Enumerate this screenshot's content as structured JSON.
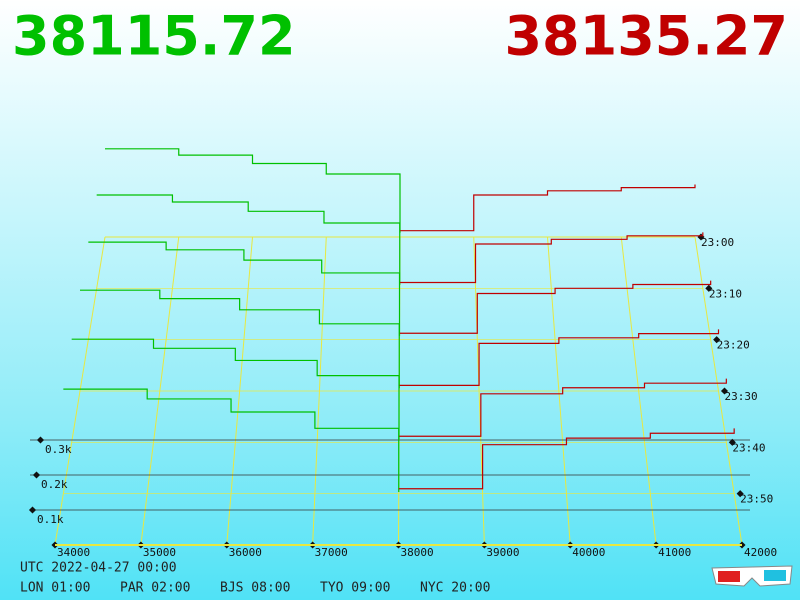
{
  "chart_data": {
    "type": "depth3d",
    "bid_price": "38115.72",
    "ask_price": "38135.27",
    "bid_color": "#00c000",
    "ask_color": "#c00000",
    "xlim": [
      34000,
      42000
    ],
    "xticks": [
      34000,
      35000,
      36000,
      37000,
      38000,
      39000,
      40000,
      41000,
      42000
    ],
    "yticks": [
      {
        "value": 100,
        "label": "0.1k"
      },
      {
        "value": 200,
        "label": "0.2k"
      },
      {
        "value": 300,
        "label": "0.3k"
      }
    ],
    "bid_prices": [
      34000,
      35000,
      36000,
      37000,
      38000
    ],
    "ask_prices": [
      38000,
      39000,
      40000,
      41000,
      42000
    ],
    "snapshots": [
      {
        "time": "23:00",
        "bids": [
          420,
          390,
          350,
          300,
          20
        ],
        "asks": [
          30,
          200,
          220,
          235,
          250
        ]
      },
      {
        "time": "23:10",
        "bids": [
          400,
          370,
          330,
          280,
          15
        ],
        "asks": [
          25,
          190,
          210,
          225,
          240
        ]
      },
      {
        "time": "23:20",
        "bids": [
          380,
          350,
          310,
          260,
          15
        ],
        "asks": [
          25,
          180,
          200,
          215,
          230
        ]
      },
      {
        "time": "23:30",
        "bids": [
          360,
          330,
          290,
          240,
          10
        ],
        "asks": [
          20,
          170,
          190,
          205,
          220
        ]
      },
      {
        "time": "23:40",
        "bids": [
          340,
          310,
          270,
          220,
          10
        ],
        "asks": [
          20,
          160,
          180,
          195,
          210
        ]
      },
      {
        "time": "23:50",
        "bids": [
          320,
          290,
          250,
          200,
          5
        ],
        "asks": [
          15,
          150,
          170,
          185,
          200
        ]
      }
    ],
    "utc": "UTC 2022-04-27 00:00",
    "cities": [
      "LON 01:00",
      "PAR 02:00",
      "BJS 08:00",
      "TYO 09:00",
      "NYC 20:00"
    ]
  }
}
